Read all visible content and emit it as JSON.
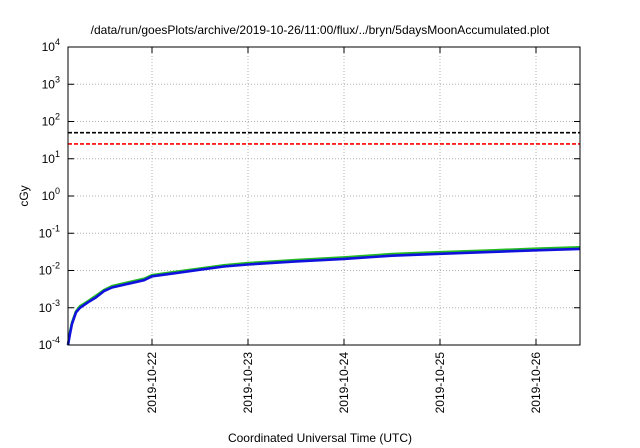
{
  "chart_data": {
    "type": "line",
    "title": "/data/run/goesPlots/archive/2019-10-26/11:00/flux/../bryn/5daysMoonAccumulated.plot",
    "xlabel": "Coordinated Universal Time (UTC)",
    "ylabel": "cGy",
    "yscale": "log",
    "ylim": [
      0.0001,
      10000
    ],
    "xlim": [
      "2019-10-21T03:00",
      "2019-10-26T11:00"
    ],
    "grid": true,
    "x_ticks": [
      "2019-10-22",
      "2019-10-23",
      "2019-10-24",
      "2019-10-25",
      "2019-10-26"
    ],
    "y_ticks": [
      {
        "base": "10",
        "exp": "-4"
      },
      {
        "base": "10",
        "exp": "-3"
      },
      {
        "base": "10",
        "exp": "-2"
      },
      {
        "base": "10",
        "exp": "-1"
      },
      {
        "base": "10",
        "exp": "0"
      },
      {
        "base": "10",
        "exp": "1"
      },
      {
        "base": "10",
        "exp": "2"
      },
      {
        "base": "10",
        "exp": "3"
      },
      {
        "base": "10",
        "exp": "4"
      }
    ],
    "thresholds": [
      {
        "value": 50,
        "color": "#000000",
        "style": "dashed"
      },
      {
        "value": 25,
        "color": "#ff0000",
        "style": "dashed"
      }
    ],
    "series": [
      {
        "color": "#22bb22",
        "x": [
          "2019-10-21T03:00",
          "2019-10-21T03:30",
          "2019-10-21T04:00",
          "2019-10-21T05:00",
          "2019-10-21T06:00",
          "2019-10-21T08:00",
          "2019-10-21T10:00",
          "2019-10-21T12:00",
          "2019-10-21T14:00",
          "2019-10-21T18:00",
          "2019-10-21T22:00",
          "2019-10-22T00:00",
          "2019-10-22T06:00",
          "2019-10-22T12:00",
          "2019-10-22T18:00",
          "2019-10-23T00:00",
          "2019-10-23T12:00",
          "2019-10-24T00:00",
          "2019-10-24T12:00",
          "2019-10-25T00:00",
          "2019-10-25T12:00",
          "2019-10-26T00:00",
          "2019-10-26T11:00"
        ],
        "y": [
          0.0001,
          0.00022,
          0.0004,
          0.0008,
          0.0011,
          0.0015,
          0.0021,
          0.003,
          0.0038,
          0.0048,
          0.006,
          0.0075,
          0.0092,
          0.0113,
          0.0138,
          0.0158,
          0.019,
          0.0225,
          0.0275,
          0.031,
          0.0345,
          0.0385,
          0.042
        ]
      },
      {
        "color": "#1111dd",
        "x": [
          "2019-10-21T03:00",
          "2019-10-21T03:30",
          "2019-10-21T04:00",
          "2019-10-21T05:00",
          "2019-10-21T06:00",
          "2019-10-21T08:00",
          "2019-10-21T10:00",
          "2019-10-21T12:00",
          "2019-10-21T14:00",
          "2019-10-21T18:00",
          "2019-10-21T22:00",
          "2019-10-22T00:00",
          "2019-10-22T06:00",
          "2019-10-22T12:00",
          "2019-10-22T18:00",
          "2019-10-23T00:00",
          "2019-10-23T12:00",
          "2019-10-24T00:00",
          "2019-10-24T12:00",
          "2019-10-25T00:00",
          "2019-10-25T12:00",
          "2019-10-26T00:00",
          "2019-10-26T11:00"
        ],
        "y": [
          0.0001,
          0.0002,
          0.00037,
          0.00075,
          0.001,
          0.0014,
          0.0019,
          0.0028,
          0.0035,
          0.0044,
          0.0055,
          0.007,
          0.0085,
          0.0105,
          0.0128,
          0.0145,
          0.0175,
          0.0205,
          0.025,
          0.028,
          0.0312,
          0.0348,
          0.038
        ]
      }
    ]
  }
}
